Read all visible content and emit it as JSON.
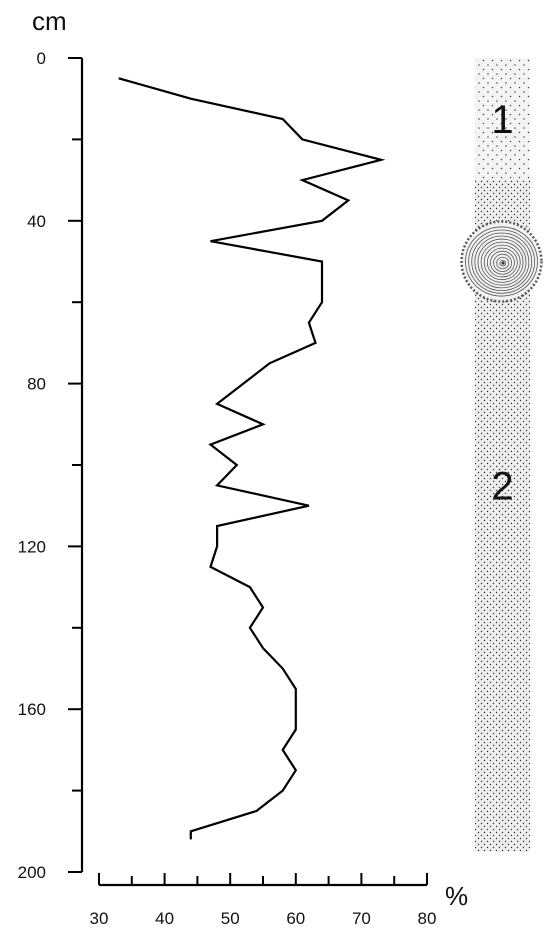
{
  "chart_data": {
    "type": "line",
    "orientation": "vertical-profile",
    "y_unit": "cm",
    "x_unit": "%",
    "ylim": [
      0,
      200
    ],
    "y_inverted": true,
    "y_ticks": [
      0,
      40,
      80,
      120,
      160,
      200
    ],
    "y_minor_step": 20,
    "xlim": [
      30,
      80
    ],
    "x_ticks": [
      30,
      40,
      50,
      60,
      70,
      80
    ],
    "x_minor_step": 5,
    "grid": false,
    "series": [
      {
        "points": [
          {
            "x": 33,
            "y": 5
          },
          {
            "x": 44,
            "y": 10
          },
          {
            "x": 58,
            "y": 15
          },
          {
            "x": 61,
            "y": 20
          },
          {
            "x": 73,
            "y": 25
          },
          {
            "x": 61,
            "y": 30
          },
          {
            "x": 68,
            "y": 35
          },
          {
            "x": 64,
            "y": 40
          },
          {
            "x": 47,
            "y": 45
          },
          {
            "x": 64,
            "y": 50
          },
          {
            "x": 64,
            "y": 55
          },
          {
            "x": 64,
            "y": 60
          },
          {
            "x": 62,
            "y": 65
          },
          {
            "x": 63,
            "y": 70
          },
          {
            "x": 56,
            "y": 75
          },
          {
            "x": 48,
            "y": 85
          },
          {
            "x": 55,
            "y": 90
          },
          {
            "x": 47,
            "y": 95
          },
          {
            "x": 51,
            "y": 100
          },
          {
            "x": 48,
            "y": 105
          },
          {
            "x": 62,
            "y": 110
          },
          {
            "x": 48,
            "y": 115
          },
          {
            "x": 48,
            "y": 120
          },
          {
            "x": 47,
            "y": 125
          },
          {
            "x": 53,
            "y": 130
          },
          {
            "x": 55,
            "y": 135
          },
          {
            "x": 53,
            "y": 140
          },
          {
            "x": 55,
            "y": 145
          },
          {
            "x": 58,
            "y": 150
          },
          {
            "x": 60,
            "y": 155
          },
          {
            "x": 60,
            "y": 160
          },
          {
            "x": 60,
            "y": 165
          },
          {
            "x": 58,
            "y": 170
          },
          {
            "x": 60,
            "y": 175
          },
          {
            "x": 58,
            "y": 180
          },
          {
            "x": 54,
            "y": 185
          },
          {
            "x": 44,
            "y": 190
          },
          {
            "x": 44,
            "y": 192
          }
        ]
      }
    ],
    "lithology_column": {
      "zones": [
        {
          "label": "1",
          "top": 0,
          "bottom": 30,
          "pattern": "sparse-dots"
        },
        {
          "label": "2",
          "top": 30,
          "bottom": 195,
          "pattern": "dense-dots"
        }
      ],
      "concretion_depth": 50
    }
  }
}
